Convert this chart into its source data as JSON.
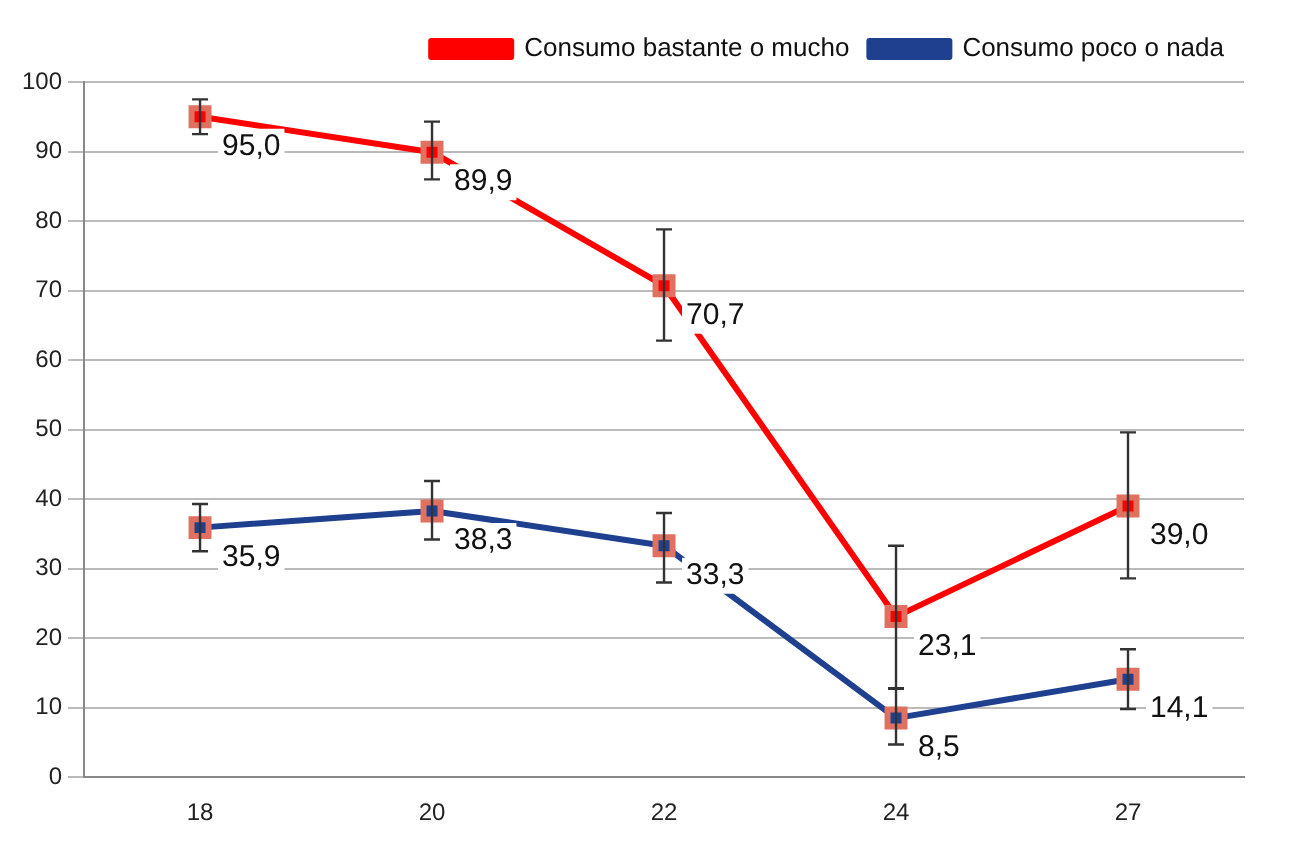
{
  "chart_data": {
    "type": "line",
    "categories": [
      "18",
      "20",
      "22",
      "24",
      "27"
    ],
    "series": [
      {
        "name": "Consumo bastante o mucho",
        "color": "#ff0000",
        "values": [
          95.0,
          89.9,
          70.7,
          23.1,
          39.0
        ],
        "value_labels": [
          "95,0",
          "89,9",
          "70,7",
          "23,1",
          "39,0"
        ],
        "errors": [
          [
            92.5,
            97.5
          ],
          [
            86,
            94.3
          ],
          [
            62.8,
            78.8
          ],
          [
            12.8,
            33.3
          ],
          [
            28.6,
            49.6
          ]
        ]
      },
      {
        "name": "Consumo poco o nada",
        "color": "#1f3f8f",
        "values": [
          35.9,
          38.3,
          33.3,
          8.5,
          14.1
        ],
        "value_labels": [
          "35,9",
          "38,3",
          "33,3",
          "8,5",
          "14,1"
        ],
        "errors": [
          [
            32.5,
            39.3
          ],
          [
            34.2,
            42.6
          ],
          [
            28,
            38
          ],
          [
            4.7,
            12.7
          ],
          [
            9.8,
            18.4
          ]
        ]
      }
    ],
    "ylim": [
      0,
      100
    ],
    "yticks": [
      0,
      10,
      20,
      30,
      40,
      50,
      60,
      70,
      80,
      90,
      100
    ],
    "grid": "y",
    "legend": "top right",
    "marker": "square",
    "line_style": "solid"
  }
}
